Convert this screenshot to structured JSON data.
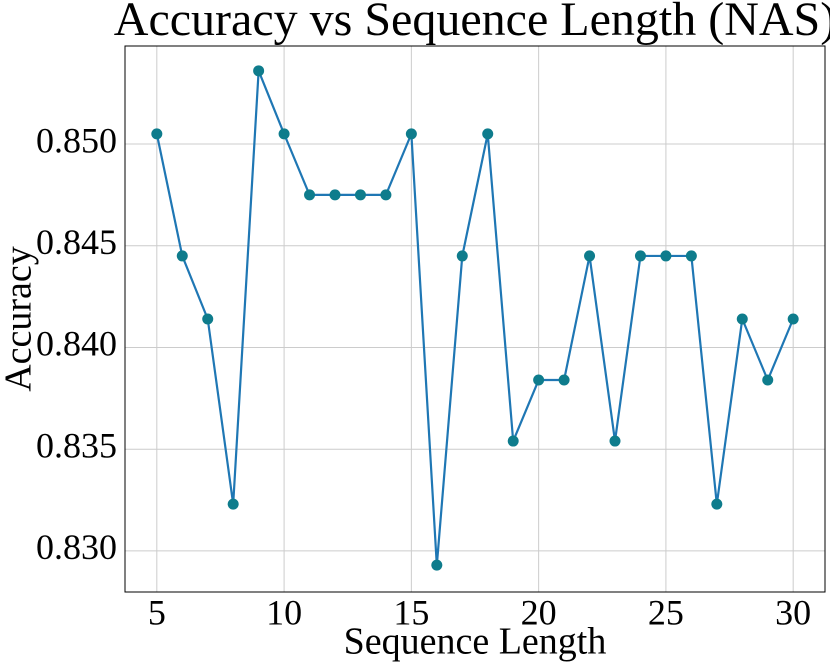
{
  "chart_data": {
    "type": "line",
    "title": "Accuracy vs Sequence Length (NAS)",
    "x_label": "Sequence Length",
    "y_label": "Accuracy",
    "x": [
      5,
      6,
      7,
      8,
      9,
      10,
      11,
      12,
      13,
      14,
      15,
      16,
      17,
      18,
      19,
      20,
      21,
      22,
      23,
      24,
      25,
      26,
      27,
      28,
      29,
      30
    ],
    "values": [
      0.8505,
      0.8445,
      0.8414,
      0.8323,
      0.8536,
      0.8505,
      0.8475,
      0.8475,
      0.8475,
      0.8475,
      0.8505,
      0.8293,
      0.8445,
      0.8505,
      0.8354,
      0.8384,
      0.8384,
      0.8445,
      0.8354,
      0.8445,
      0.8445,
      0.8445,
      0.8323,
      0.8414,
      0.8384,
      0.8414
    ],
    "line_color": "#1f77b4",
    "marker_color": "#0e7c8c",
    "xlim": [
      3.75,
      31.25
    ],
    "xticks": [
      5,
      10,
      15,
      20,
      25,
      30
    ],
    "ylim": [
      0.82798,
      0.85482
    ],
    "yticks": [
      {
        "value": 0.83,
        "label": "0.830"
      },
      0.835,
      {
        "value": 0.84,
        "label": "0.840"
      },
      0.845,
      {
        "value": 0.85,
        "label": "0.850"
      }
    ],
    "grid": true
  }
}
